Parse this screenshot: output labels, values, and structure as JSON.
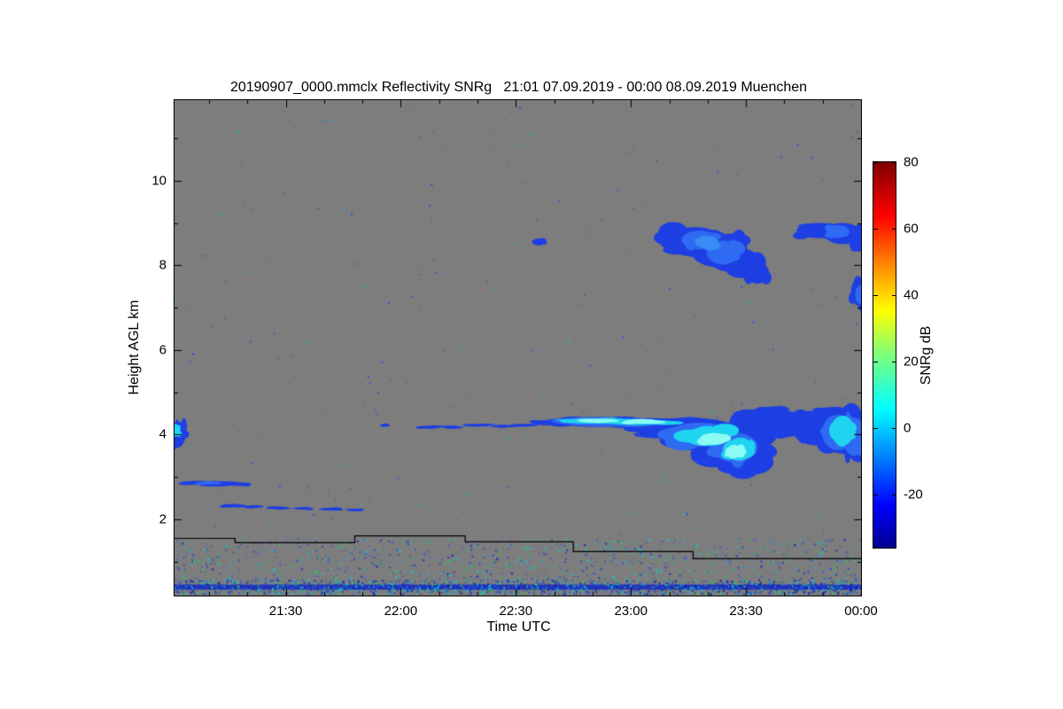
{
  "chart_data": {
    "type": "heatmap",
    "title": "20190907_0000.mmclx Reflectivity SNRg   21:01 07.09.2019 - 00:00 08.09.2019 Muenchen",
    "xlabel": "Time UTC",
    "ylabel": "Height AGL km",
    "plot_bg": "#7d7d7d",
    "x_range_hours_utc": [
      21.0167,
      24.0
    ],
    "x_ticks": [
      {
        "t": 21.5,
        "label": "21:30"
      },
      {
        "t": 22.0,
        "label": "22:00"
      },
      {
        "t": 22.5,
        "label": "22:30"
      },
      {
        "t": 23.0,
        "label": "23:00"
      },
      {
        "t": 23.5,
        "label": "23:30"
      },
      {
        "t": 24.0,
        "label": "00:00"
      }
    ],
    "y_range_km": [
      0.2,
      11.9
    ],
    "y_ticks": [
      2,
      4,
      6,
      8,
      10
    ],
    "colorbar": {
      "label": "SNRg dB",
      "colormap": "jet",
      "range_db": [
        -36,
        80
      ],
      "ticks_db": [
        80,
        60,
        40,
        20,
        0,
        -20
      ],
      "gradient": [
        [
          0.0,
          "#00008f"
        ],
        [
          0.11,
          "#0000ff"
        ],
        [
          0.36,
          "#00ffff"
        ],
        [
          0.5,
          "#7dff7a"
        ],
        [
          0.615,
          "#ffff00"
        ],
        [
          0.73,
          "#ff8c00"
        ],
        [
          0.86,
          "#ff0000"
        ],
        [
          1.0,
          "#800000"
        ]
      ]
    },
    "cloud_blobs": [
      [
        21.03,
        4.0,
        0.035,
        0.3,
        "#1d3fe3"
      ],
      [
        21.02,
        4.1,
        0.02,
        0.15,
        "#1fd4ef"
      ],
      [
        21.12,
        2.86,
        0.08,
        0.05,
        "#1d3fe3"
      ],
      [
        21.22,
        2.84,
        0.09,
        0.05,
        "#1d3fe3"
      ],
      [
        21.3,
        2.83,
        0.05,
        0.04,
        "#1d3fe3"
      ],
      [
        21.17,
        2.86,
        0.05,
        0.03,
        "#2f6bf2"
      ],
      [
        21.28,
        2.32,
        0.05,
        0.035,
        "#1d3fe3"
      ],
      [
        21.37,
        2.3,
        0.035,
        0.03,
        "#1d3fe3"
      ],
      [
        21.47,
        2.27,
        0.045,
        0.03,
        "#1d3fe3"
      ],
      [
        21.58,
        2.26,
        0.035,
        0.025,
        "#1d3fe3"
      ],
      [
        21.7,
        2.24,
        0.045,
        0.025,
        "#1d3fe3"
      ],
      [
        21.8,
        2.22,
        0.035,
        0.025,
        "#1d3fe3"
      ],
      [
        21.93,
        4.22,
        0.02,
        0.025,
        "#1d3fe3"
      ],
      [
        22.12,
        4.18,
        0.05,
        0.035,
        "#1d3fe3"
      ],
      [
        22.22,
        4.18,
        0.045,
        0.03,
        "#1d3fe3"
      ],
      [
        22.33,
        4.22,
        0.055,
        0.035,
        "#1d3fe3"
      ],
      [
        22.44,
        4.2,
        0.05,
        0.03,
        "#1d3fe3"
      ],
      [
        22.53,
        4.22,
        0.05,
        0.035,
        "#1d3fe3"
      ],
      [
        22.6,
        8.55,
        0.03,
        0.08,
        "#1d3fe3"
      ],
      [
        23.18,
        8.65,
        0.08,
        0.2,
        "#1d3fe3"
      ],
      [
        23.28,
        8.55,
        0.12,
        0.35,
        "#1d3fe3"
      ],
      [
        23.38,
        8.35,
        0.12,
        0.4,
        "#1d3fe3"
      ],
      [
        23.48,
        8.05,
        0.08,
        0.35,
        "#1d3fe3"
      ],
      [
        23.55,
        7.82,
        0.05,
        0.25,
        "#1d3fe3"
      ],
      [
        23.3,
        8.6,
        0.08,
        0.22,
        "#2f6bf2"
      ],
      [
        23.4,
        8.3,
        0.07,
        0.28,
        "#2f6bf2"
      ],
      [
        23.33,
        8.55,
        0.05,
        0.15,
        "#3a8df5"
      ],
      [
        23.82,
        8.82,
        0.1,
        0.18,
        "#1d3fe3"
      ],
      [
        23.92,
        8.75,
        0.08,
        0.25,
        "#1d3fe3"
      ],
      [
        23.99,
        8.62,
        0.04,
        0.3,
        "#1d3fe3"
      ],
      [
        23.9,
        8.8,
        0.05,
        0.15,
        "#2f6bf2"
      ],
      [
        23.99,
        7.35,
        0.035,
        0.3,
        "#1d3fe3"
      ],
      [
        24.0,
        7.3,
        0.025,
        0.22,
        "#2f6bf2"
      ],
      [
        22.62,
        4.28,
        0.05,
        0.05,
        "#1d3fe3"
      ],
      [
        22.72,
        4.3,
        0.1,
        0.08,
        "#1d3fe3"
      ],
      [
        22.88,
        4.3,
        0.2,
        0.12,
        "#1d3fe3"
      ],
      [
        23.08,
        4.27,
        0.18,
        0.12,
        "#1d3fe3"
      ],
      [
        23.25,
        4.15,
        0.2,
        0.25,
        "#1d3fe3"
      ],
      [
        23.33,
        3.95,
        0.18,
        0.35,
        "#1d3fe3"
      ],
      [
        23.45,
        3.65,
        0.15,
        0.45,
        "#1d3fe3"
      ],
      [
        23.52,
        3.35,
        0.1,
        0.3,
        "#1d3fe3"
      ],
      [
        23.55,
        4.35,
        0.12,
        0.25,
        "#1d3fe3"
      ],
      [
        23.62,
        4.55,
        0.06,
        0.12,
        "#1d3fe3"
      ],
      [
        23.68,
        4.25,
        0.1,
        0.3,
        "#1d3fe3"
      ],
      [
        23.8,
        4.15,
        0.1,
        0.4,
        "#1d3fe3"
      ],
      [
        23.87,
        4.55,
        0.07,
        0.1,
        "#1d3fe3"
      ],
      [
        23.92,
        4.05,
        0.09,
        0.5,
        "#1d3fe3"
      ],
      [
        23.99,
        3.9,
        0.06,
        0.55,
        "#1d3fe3"
      ],
      [
        22.8,
        4.31,
        0.14,
        0.08,
        "#2f6bf2"
      ],
      [
        23.0,
        4.29,
        0.16,
        0.09,
        "#2f6bf2"
      ],
      [
        23.3,
        4.0,
        0.15,
        0.28,
        "#2f6bf2"
      ],
      [
        23.45,
        3.7,
        0.1,
        0.35,
        "#2f6bf2"
      ],
      [
        23.9,
        4.05,
        0.07,
        0.42,
        "#2f6bf2"
      ],
      [
        23.97,
        3.95,
        0.05,
        0.45,
        "#2f6bf2"
      ],
      [
        22.82,
        4.32,
        0.11,
        0.06,
        "#1fd4ef"
      ],
      [
        23.02,
        4.3,
        0.12,
        0.07,
        "#1fd4ef"
      ],
      [
        23.15,
        4.28,
        0.08,
        0.05,
        "#1fd4ef"
      ],
      [
        23.33,
        3.95,
        0.1,
        0.22,
        "#1fd4ef"
      ],
      [
        23.47,
        3.65,
        0.07,
        0.25,
        "#1fd4ef"
      ],
      [
        23.92,
        4.1,
        0.05,
        0.35,
        "#1fd4ef"
      ],
      [
        22.86,
        4.33,
        0.08,
        0.045,
        "#8cfcf4"
      ],
      [
        23.05,
        4.31,
        0.08,
        0.05,
        "#8cfcf4"
      ],
      [
        23.36,
        3.9,
        0.06,
        0.14,
        "#8cfcf4"
      ],
      [
        23.45,
        3.6,
        0.04,
        0.15,
        "#8cfcf4"
      ]
    ],
    "speckle_layers": [
      {
        "count": 240,
        "h_min": 1.6,
        "h_max": 11.85,
        "s_min": 1,
        "s_max": 2.0,
        "colors": [
          "#2a50e8",
          "#1d3fe3",
          "#00c8e8"
        ]
      },
      {
        "count": 900,
        "h_min": 0.58,
        "h_max": 1.55,
        "s_min": 1,
        "s_max": 2.4,
        "colors": [
          "#2a50e8",
          "#00d0e0",
          "#2fc860",
          "#1830c0"
        ]
      },
      {
        "count": 1700,
        "h_min": 0.24,
        "h_max": 0.58,
        "s_min": 1,
        "s_max": 2.4,
        "colors": [
          "#1830d0",
          "#2a50e8",
          "#00d0e0",
          "#2fc860",
          "#0a18a0"
        ]
      }
    ],
    "bands": [
      [
        0.34,
        0.46,
        "#1226c8",
        0.85
      ]
    ],
    "base_line": [
      [
        21.017,
        21.28,
        1.56
      ],
      [
        21.28,
        21.8,
        1.46
      ],
      [
        21.8,
        22.28,
        1.62
      ],
      [
        22.28,
        22.75,
        1.48
      ],
      [
        22.75,
        23.27,
        1.25
      ],
      [
        23.27,
        24.0,
        1.08
      ]
    ]
  }
}
